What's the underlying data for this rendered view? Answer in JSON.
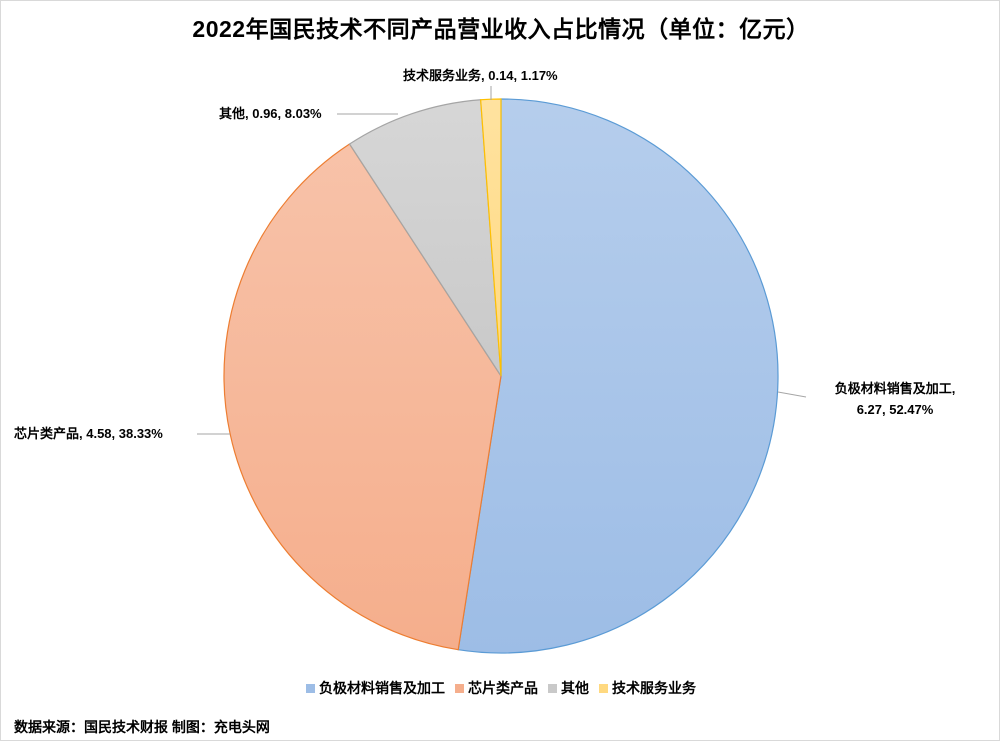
{
  "chart_data": {
    "type": "pie",
    "title": "2022年国民技术不同产品营业收入占比情况（单位：亿元）",
    "slices": [
      {
        "name": "负极材料销售及加工",
        "value": 6.27,
        "percent": "52.47%",
        "color": "#9dbde6",
        "edge": "#5b9bd5",
        "label_line1": "负极材料销售及加工,",
        "label_line2": "6.27, 52.47%"
      },
      {
        "name": "芯片类产品",
        "value": 4.58,
        "percent": "38.33%",
        "color": "#f5ae8c",
        "edge": "#ed7d31",
        "label_line1": "芯片类产品, 4.58, 38.33%",
        "label_line2": ""
      },
      {
        "name": "其他",
        "value": 0.96,
        "percent": "8.03%",
        "color": "#c9c9c9",
        "edge": "#a5a5a5",
        "label_line1": "其他, 0.96, 8.03%",
        "label_line2": ""
      },
      {
        "name": "技术服务业务",
        "value": 0.14,
        "percent": "1.17%",
        "color": "#ffd980",
        "edge": "#ffc000",
        "label_line1": "技术服务业务, 0.14, 1.17%",
        "label_line2": ""
      }
    ],
    "legend_position": "bottom"
  },
  "footer": {
    "source": "数据来源：国民技术财报 制图：充电头网"
  }
}
